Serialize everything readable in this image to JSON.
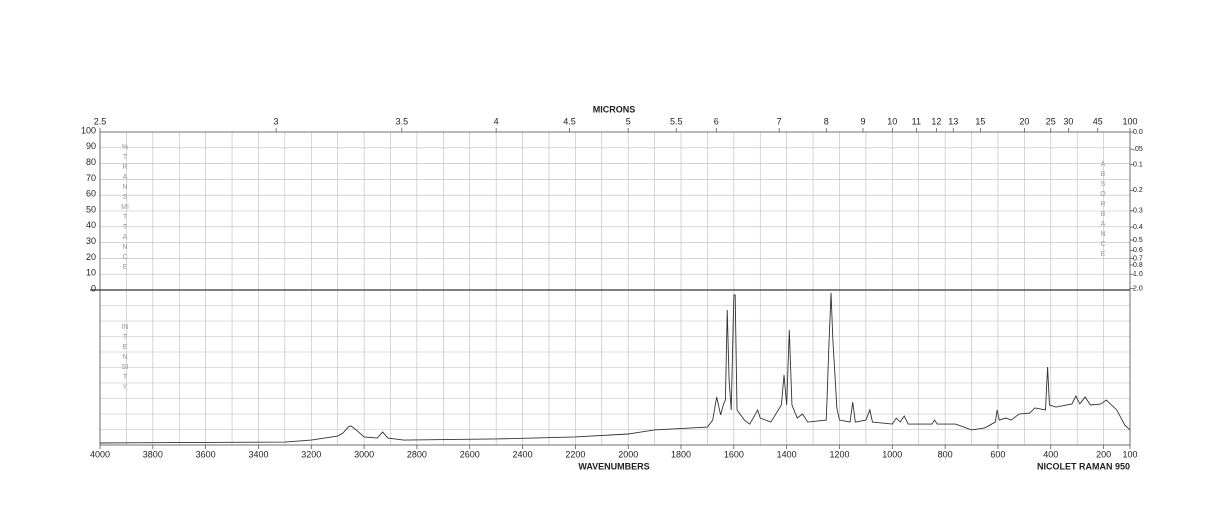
{
  "chart_data": {
    "type": "line",
    "top_axis": {
      "label": "MICRONS",
      "ticks": [
        2.5,
        3,
        3.5,
        4,
        4.5,
        5,
        5.5,
        6,
        7,
        8,
        9,
        10,
        11,
        12,
        13,
        15,
        20,
        25,
        30,
        45,
        100
      ]
    },
    "xlabel": "WAVENUMBERS",
    "note": "NICOLET RAMAN 950",
    "xlim": [
      4000,
      100
    ],
    "xticks": [
      4000,
      3800,
      3600,
      3400,
      3200,
      3000,
      2800,
      2600,
      2400,
      2200,
      2000,
      1800,
      1600,
      1400,
      1200,
      1000,
      800,
      600,
      400,
      200,
      100
    ],
    "xgrid": [
      4000,
      3900,
      3800,
      3700,
      3600,
      3500,
      3400,
      3300,
      3200,
      3100,
      3000,
      2900,
      2800,
      2700,
      2600,
      2500,
      2400,
      2300,
      2200,
      2100,
      2000,
      1900,
      1800,
      1700,
      1600,
      1500,
      1400,
      1300,
      1200,
      1100,
      1000,
      900,
      800,
      700,
      600,
      500,
      400,
      300,
      200,
      100
    ],
    "transmittance": {
      "label": "%TRANSMITTANCE",
      "ylim": [
        0,
        100
      ],
      "yticks": [
        0,
        10,
        20,
        30,
        40,
        50,
        60,
        70,
        80,
        90,
        100
      ]
    },
    "absorbance": {
      "label": "ABSORBANCE",
      "ticks": [
        {
          "value": 0,
          "label": "0.0"
        },
        {
          "value": 0.05,
          "label": ".05"
        },
        0.1,
        0.2,
        0.3,
        0.4,
        0.5,
        0.6,
        0.7,
        0.8,
        {
          "value": 1,
          "label": "1.0"
        },
        {
          "value": 2,
          "label": "2.0"
        }
      ]
    },
    "intensity": {
      "label": "INTENSITY",
      "ylim": [
        0,
        100
      ],
      "grid": [
        0,
        10,
        20,
        30,
        40,
        50,
        60,
        70,
        80,
        90,
        100
      ]
    },
    "color": "#333333",
    "x": [
      4000,
      3300,
      3200,
      3100,
      3080,
      3060,
      3050,
      3030,
      3000,
      2950,
      2930,
      2910,
      2850,
      2500,
      2200,
      2000,
      1900,
      1700,
      1680,
      1665,
      1650,
      1640,
      1632,
      1625,
      1618,
      1610,
      1600,
      1595,
      1588,
      1560,
      1540,
      1520,
      1510,
      1500,
      1460,
      1420,
      1410,
      1400,
      1390,
      1380,
      1360,
      1340,
      1320,
      1250,
      1240,
      1232,
      1225,
      1215,
      1210,
      1200,
      1160,
      1150,
      1140,
      1100,
      1085,
      1075,
      1000,
      985,
      970,
      955,
      940,
      850,
      840,
      830,
      760,
      700,
      650,
      610,
      603,
      595,
      570,
      550,
      520,
      480,
      460,
      420,
      412,
      405,
      380,
      320,
      305,
      290,
      270,
      250,
      210,
      190,
      150,
      120,
      100
    ],
    "values": [
      1.3,
      1.9,
      3.2,
      5.8,
      7.7,
      11.6,
      12.3,
      9.7,
      5.2,
      4.5,
      8.4,
      4.5,
      3.2,
      3.9,
      5.2,
      7.1,
      9.7,
      11.6,
      16.1,
      31,
      19.4,
      25.8,
      29,
      87.1,
      41.9,
      22.6,
      96.8,
      96.8,
      22.6,
      16.1,
      13.5,
      19.4,
      22.6,
      17.4,
      14.8,
      25.8,
      45.2,
      25.8,
      74.2,
      25.8,
      17.4,
      20,
      14.8,
      16.1,
      64.5,
      98.1,
      67.7,
      38.7,
      23.9,
      16.1,
      14.8,
      27.7,
      14.8,
      16.1,
      22.6,
      14.8,
      13.5,
      17.4,
      14.8,
      18.7,
      13.5,
      13.5,
      16.1,
      13.5,
      13.5,
      9.7,
      11,
      14.8,
      22.6,
      16.1,
      17.4,
      16.1,
      20,
      20.6,
      23.9,
      22.6,
      50.3,
      25.8,
      24.5,
      26.5,
      31.6,
      26.5,
      31,
      25.8,
      26.5,
      29,
      22.6,
      12.9,
      9.7
    ]
  }
}
